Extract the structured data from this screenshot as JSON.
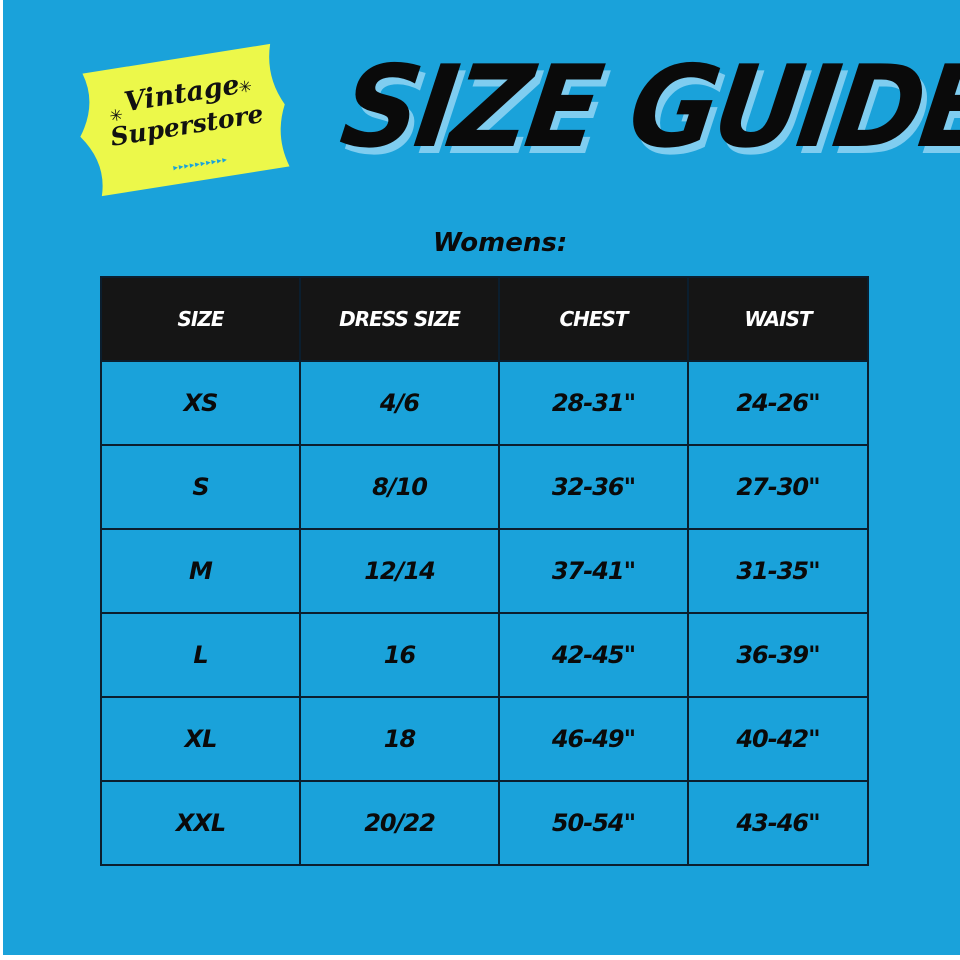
{
  "logo": {
    "line1": "Vintage",
    "line2": "Superstore"
  },
  "title": "SIZE GUIDE",
  "subtitle": "Womens:",
  "colors": {
    "background": "#1aa2da",
    "header": "#151515",
    "logo": "#ecf84a",
    "title_shadow": "#7fcdf0"
  },
  "table": {
    "headers": [
      "SIZE",
      "DRESS SIZE",
      "CHEST",
      "WAIST"
    ],
    "rows": [
      [
        "XS",
        "4/6",
        "28-31\"",
        "24-26\""
      ],
      [
        "S",
        "8/10",
        "32-36\"",
        "27-30\""
      ],
      [
        "M",
        "12/14",
        "37-41\"",
        "31-35\""
      ],
      [
        "L",
        "16",
        "42-45\"",
        "36-39\""
      ],
      [
        "XL",
        "18",
        "46-49\"",
        "40-42\""
      ],
      [
        "XXL",
        "20/22",
        "50-54\"",
        "43-46\""
      ]
    ]
  }
}
